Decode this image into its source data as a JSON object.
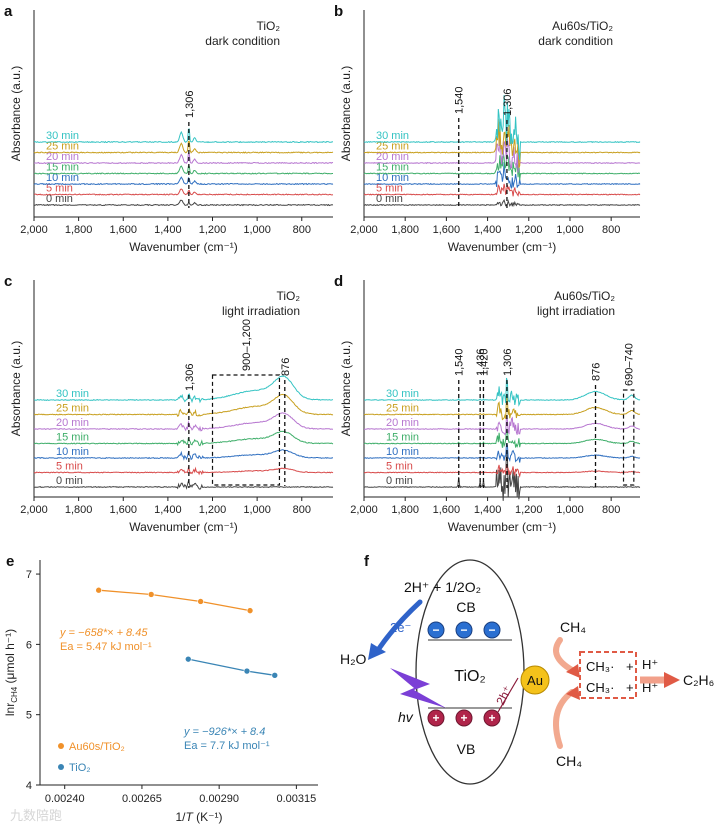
{
  "figure": {
    "watermark": "九数陪跑"
  },
  "panels": [
    {
      "letter": "a",
      "label": [
        "TiO₂",
        "dark condition"
      ],
      "xlabel": "Wavenumber (cm⁻¹)",
      "ylabel": "Absorbance (a.u.)",
      "xticks": [
        "2,000",
        "1,800",
        "1,600",
        "1,400",
        "1,200",
        "1,000",
        "800"
      ],
      "series_labels": [
        "30 min",
        "25 min",
        "20 min",
        "15 min",
        "10 min",
        "5 min",
        "0 min"
      ],
      "peak_labels": [
        "1,306"
      ],
      "box_label": ""
    },
    {
      "letter": "b",
      "label": [
        "Au60s/TiO₂",
        "dark condition"
      ],
      "xlabel": "Wavenumber (cm⁻¹)",
      "ylabel": "Absorbance (a.u.)",
      "xticks": [
        "2,000",
        "1,800",
        "1,600",
        "1,400",
        "1,200",
        "1,000",
        "800"
      ],
      "series_labels": [
        "30 min",
        "25 min",
        "20 min",
        "15 min",
        "10 min",
        "5 min",
        "0 min"
      ],
      "peak_labels": [
        "1,540",
        "1,306"
      ],
      "box_label": ""
    },
    {
      "letter": "c",
      "label": [
        "TiO₂",
        "light irradiation"
      ],
      "xlabel": "Wavenumber (cm⁻¹)",
      "ylabel": "Absorbance (a.u.)",
      "xticks": [
        "2,000",
        "1,800",
        "1,600",
        "1,400",
        "1,200",
        "1,000",
        "800"
      ],
      "series_labels": [
        "30 min",
        "25 min",
        "20 min",
        "15 min",
        "10 min",
        "5 min",
        "0 min"
      ],
      "peak_labels": [
        "1,306",
        "876"
      ],
      "box_label": "900–1,200"
    },
    {
      "letter": "d",
      "label": [
        "Au60s/TiO₂",
        "light irradiation"
      ],
      "xlabel": "Wavenumber (cm⁻¹)",
      "ylabel": "Absorbance (a.u.)",
      "xticks": [
        "2,000",
        "1,800",
        "1,600",
        "1,400",
        "1,200",
        "1,000",
        "800"
      ],
      "series_labels": [
        "30 min",
        "25 min",
        "20 min",
        "15 min",
        "10 min",
        "5 min",
        "0 min"
      ],
      "peak_labels": [
        "1,540",
        "1,436",
        "1,420",
        "1,306",
        "876"
      ],
      "box_label": "690–740"
    }
  ],
  "colors": {
    "series": [
      "#34c3c3",
      "#c8a020",
      "#b777d0",
      "#3fae6a",
      "#2f6fc0",
      "#d84b4b",
      "#444444"
    ],
    "orange": "#f0912a",
    "blue": "#3a85b5",
    "arrow_purple": "#7b3fd6",
    "red_dashed": "#e05a45"
  },
  "chart_data": [
    {
      "panel": "a",
      "type": "line",
      "x_reversed": true,
      "xlim": [
        2000,
        660
      ],
      "series_names": [
        "30 min",
        "25 min",
        "20 min",
        "15 min",
        "10 min",
        "5 min",
        "0 min"
      ],
      "peaks": [
        {
          "x": 1306,
          "label": "1,306"
        }
      ],
      "peak_heights_relative": [
        0.4,
        0.35,
        0.3,
        0.3,
        0.25,
        0.25,
        0.2
      ]
    },
    {
      "panel": "b",
      "type": "line",
      "x_reversed": true,
      "xlim": [
        2000,
        660
      ],
      "series_names": [
        "30 min",
        "25 min",
        "20 min",
        "15 min",
        "10 min",
        "5 min",
        "0 min"
      ],
      "peaks": [
        {
          "x": 1540,
          "label": "1,540"
        },
        {
          "x": 1306,
          "label": "1,306"
        }
      ],
      "peak_heights_relative": [
        3.0,
        2.2,
        1.8,
        1.5,
        1.2,
        0.8,
        0.3
      ]
    },
    {
      "panel": "c",
      "type": "line",
      "x_reversed": true,
      "xlim": [
        2000,
        660
      ],
      "series_names": [
        "30 min",
        "25 min",
        "20 min",
        "15 min",
        "10 min",
        "5 min",
        "0 min"
      ],
      "peaks": [
        {
          "x": 1306,
          "label": "1,306"
        },
        {
          "x": 876,
          "label": "876"
        }
      ],
      "region": {
        "from": 1200,
        "to": 900,
        "label": "900–1,200"
      }
    },
    {
      "panel": "d",
      "type": "line",
      "x_reversed": true,
      "xlim": [
        2000,
        660
      ],
      "series_names": [
        "30 min",
        "25 min",
        "20 min",
        "15 min",
        "10 min",
        "5 min",
        "0 min"
      ],
      "peaks": [
        {
          "x": 1540,
          "label": "1,540"
        },
        {
          "x": 1436,
          "label": "1,436"
        },
        {
          "x": 1420,
          "label": "1,420"
        },
        {
          "x": 1306,
          "label": "1,306"
        },
        {
          "x": 876,
          "label": "876"
        }
      ],
      "region": {
        "from": 740,
        "to": 690,
        "label": "690–740"
      }
    },
    {
      "panel": "e",
      "type": "scatter",
      "xlabel": "1/T (K⁻¹)",
      "ylabel": "lnr_CH4 (μmol h⁻¹)",
      "xlim": [
        0.00232,
        0.00322
      ],
      "ylim": [
        4,
        7.2
      ],
      "xticks": [
        0.0024,
        0.00265,
        0.0029,
        0.00315
      ],
      "xtick_labels": [
        "0.00240",
        "0.00265",
        "0.00290",
        "0.00315"
      ],
      "yticks": [
        4,
        5,
        6,
        7
      ],
      "ytick_labels": [
        "4",
        "5",
        "6",
        "7"
      ],
      "series": [
        {
          "name": "Au60s/TiO₂",
          "color": "#f0912a",
          "x": [
            0.00251,
            0.00268,
            0.00284,
            0.003
          ],
          "y": [
            6.77,
            6.71,
            6.61,
            6.48
          ],
          "fit": "y = −658*× + 8.45",
          "ea": "Ea = 5.47 kJ mol⁻¹"
        },
        {
          "name": "TiO₂",
          "color": "#3a85b5",
          "x": [
            0.0028,
            0.00299,
            0.00308
          ],
          "y": [
            5.79,
            5.62,
            5.56
          ],
          "fit": "y = −926*× + 8.4",
          "ea": "Ea = 7.7 kJ mol⁻¹"
        }
      ]
    }
  ],
  "panel_e": {
    "letter": "e",
    "xlabel_main": "1/",
    "xlabel_T": "T",
    "xlabel_unit": " (K⁻¹)",
    "ylabel": "lnr_CH4 (μmol h⁻¹)",
    "ylabel_main": "lnr",
    "ylabel_sub": "CH4",
    "ylabel_unit": " (μmol h⁻¹)",
    "orange_fit": "y = −658*× + 8.45",
    "orange_ea": "Ea = 5.47 kJ mol⁻¹",
    "blue_fit": "y = −926*× + 8.4",
    "blue_ea": "Ea = 7.7 kJ mol⁻¹",
    "legend": [
      "Au60s/TiO₂",
      "TiO₂"
    ]
  },
  "panel_f": {
    "letter": "f",
    "top_reaction": "2H⁺ + 1/2O₂",
    "electrons": "2e⁻",
    "water": "H₂O",
    "cb": "CB",
    "vb": "VB",
    "center": "TiO₂",
    "light": "hv",
    "holes": "2h⁺",
    "au": "Au",
    "ch4_top": "CH₄",
    "ch4_bottom": "CH₄",
    "radical1": "CH₃·",
    "radical2": "CH₃·",
    "plus": "+",
    "h_plus1": "H⁺",
    "h_plus2": "H⁺",
    "product": "C₂H₆",
    "minus_sign": "−",
    "plus_sign": "+"
  }
}
